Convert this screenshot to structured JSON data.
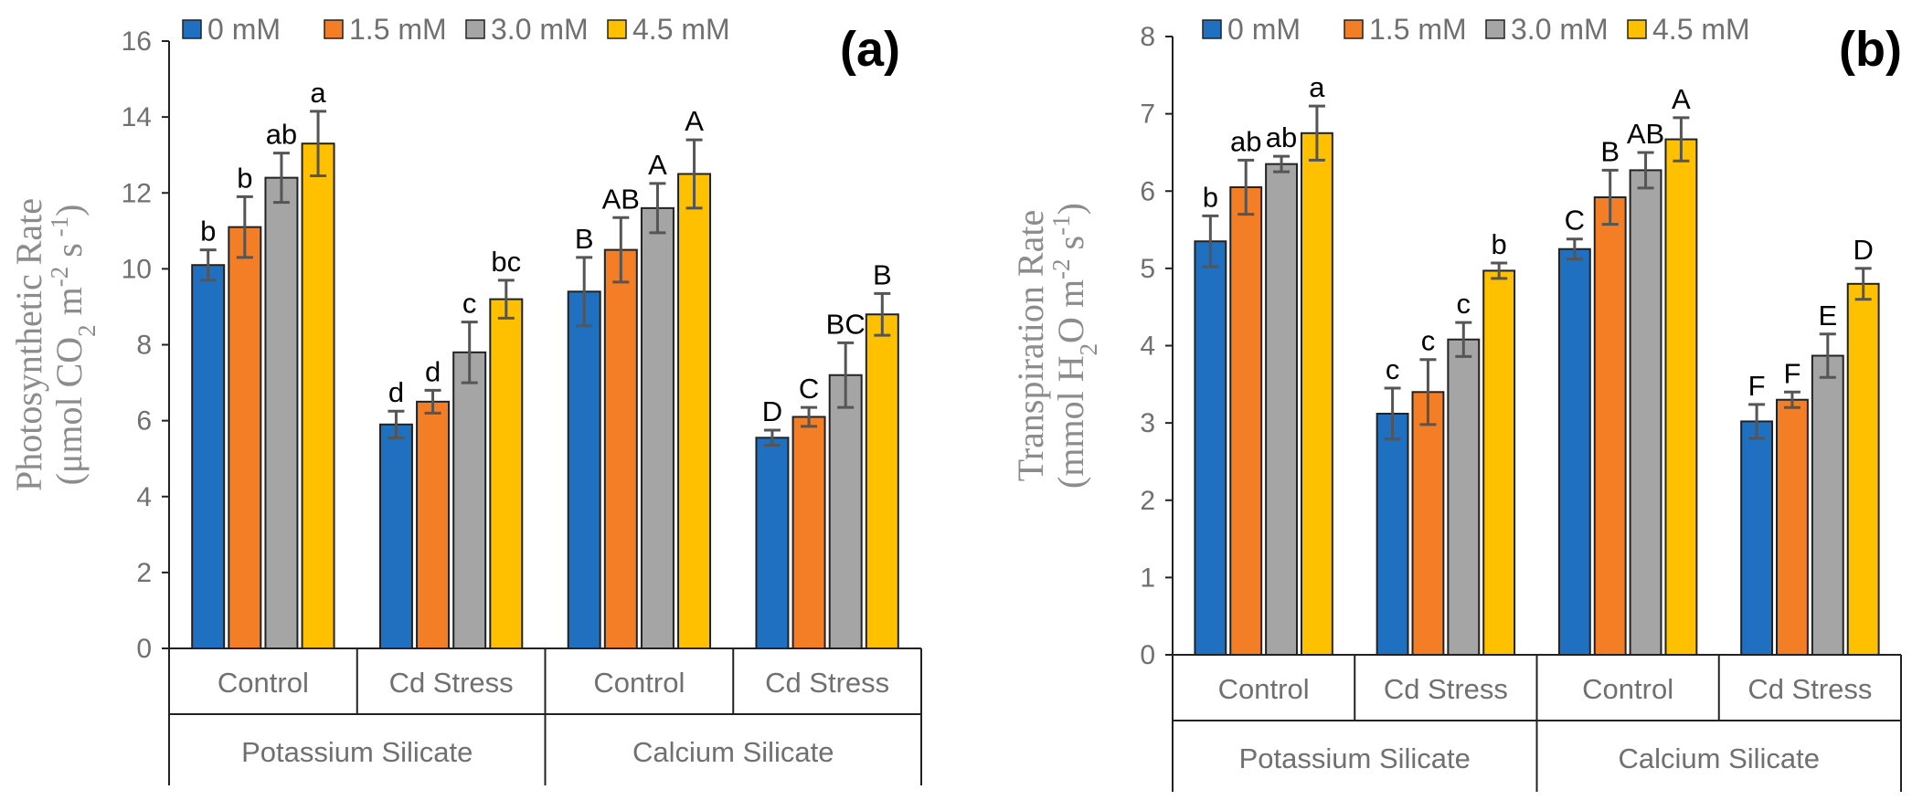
{
  "chart_data": [
    {
      "type": "bar",
      "panel_label": "(a)",
      "ylabel_line1": "Photosynthetic Rate",
      "ylabel_line2_parts": [
        "(μmol CO",
        "2",
        " m",
        "-2",
        " s",
        " -1",
        ")"
      ],
      "ylim": [
        0,
        16
      ],
      "yticks": [
        "0",
        "2",
        "4",
        "6",
        "8",
        "10",
        "12",
        "14",
        "16"
      ],
      "legend": [
        "0 mM",
        "1.5 mM",
        "3.0 mM",
        "4.5 mM"
      ],
      "colors": [
        "#1f70c1",
        "#f37e26",
        "#a5a5a5",
        "#ffc000"
      ],
      "groups": [
        "Potassium Silicate",
        "Calcium Silicate"
      ],
      "categories": [
        "Control",
        "Cd Stress",
        "Control",
        "Cd Stress"
      ],
      "series": [
        {
          "name": "0 mM",
          "values": [
            10.1,
            5.9,
            9.4,
            5.55
          ],
          "errors": [
            0.4,
            0.35,
            0.9,
            0.2
          ],
          "letters": [
            "b",
            "d",
            "B",
            "D"
          ]
        },
        {
          "name": "1.5 mM",
          "values": [
            11.1,
            6.5,
            10.5,
            6.1
          ],
          "errors": [
            0.8,
            0.3,
            0.85,
            0.25
          ],
          "letters": [
            "b",
            "d",
            "AB",
            "C"
          ]
        },
        {
          "name": "3.0 mM",
          "values": [
            12.4,
            7.8,
            11.6,
            7.2
          ],
          "errors": [
            0.65,
            0.8,
            0.65,
            0.85
          ],
          "letters": [
            "ab",
            "c",
            "A",
            "BC"
          ]
        },
        {
          "name": "4.5 mM",
          "values": [
            13.3,
            9.2,
            12.5,
            8.8
          ],
          "errors": [
            0.85,
            0.5,
            0.9,
            0.55
          ],
          "letters": [
            "a",
            "bc",
            "A",
            "B"
          ]
        }
      ]
    },
    {
      "type": "bar",
      "panel_label": "(b)",
      "ylabel_line1": "Transpiration Rate",
      "ylabel_line2_parts": [
        "(mmol H",
        "2",
        "O m",
        "-2",
        " s",
        "-1",
        ")"
      ],
      "ylim": [
        0,
        8
      ],
      "yticks": [
        "0",
        "1",
        "2",
        "3",
        "4",
        "5",
        "6",
        "7",
        "8"
      ],
      "legend": [
        "0 mM",
        "1.5 mM",
        "3.0 mM",
        "4.5 mM"
      ],
      "colors": [
        "#1f70c1",
        "#f37e26",
        "#a5a5a5",
        "#ffc000"
      ],
      "groups": [
        "Potassium Silicate",
        "Calcium Silicate"
      ],
      "categories": [
        "Control",
        "Cd Stress",
        "Control",
        "Cd Stress"
      ],
      "series": [
        {
          "name": "0 mM",
          "values": [
            5.35,
            3.12,
            5.25,
            3.02
          ],
          "errors": [
            0.33,
            0.33,
            0.13,
            0.22
          ],
          "letters": [
            "b",
            "c",
            "C",
            "F"
          ]
        },
        {
          "name": "1.5 mM",
          "values": [
            6.05,
            3.4,
            5.92,
            3.3
          ],
          "errors": [
            0.35,
            0.42,
            0.35,
            0.1
          ],
          "letters": [
            "ab",
            "c",
            "B",
            "F"
          ]
        },
        {
          "name": "3.0 mM",
          "values": [
            6.35,
            4.08,
            6.27,
            3.87
          ],
          "errors": [
            0.1,
            0.22,
            0.23,
            0.28
          ],
          "letters": [
            "ab",
            "c",
            "AB",
            "E"
          ]
        },
        {
          "name": "4.5 mM",
          "values": [
            6.75,
            4.97,
            6.67,
            4.8
          ],
          "errors": [
            0.35,
            0.1,
            0.28,
            0.2
          ],
          "letters": [
            "a",
            "b",
            "A",
            "D"
          ]
        }
      ]
    }
  ]
}
